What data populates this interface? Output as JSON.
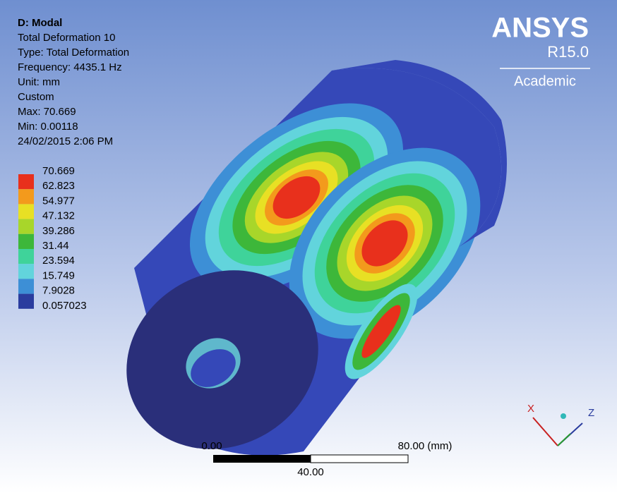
{
  "header": {
    "title": "D: Modal",
    "lines": [
      "Total Deformation 10",
      "Type: Total Deformation",
      "Frequency: 4435.1 Hz",
      "Unit: mm",
      "Custom",
      "Max: 70.669",
      "Min: 0.00118",
      "24/02/2015 2:06 PM"
    ]
  },
  "legend": {
    "labels": [
      "70.669",
      "62.823",
      "54.977",
      "47.132",
      "39.286",
      "31.44",
      "23.594",
      "15.749",
      "7.9028",
      "0.057023"
    ],
    "colors": [
      "#e8301c",
      "#f39a1c",
      "#e8e024",
      "#a8d62a",
      "#3db73a",
      "#3fd39a",
      "#62d4dc",
      "#3d8fd6",
      "#2a3c9e"
    ]
  },
  "logo": {
    "brand": "ANSYS",
    "release": "R15.0",
    "edition": "Academic"
  },
  "scale_bar": {
    "start": "0.00",
    "end": "80.00 (mm)",
    "middle": "40.00"
  },
  "triad": {
    "x": "X",
    "z": "Z"
  }
}
